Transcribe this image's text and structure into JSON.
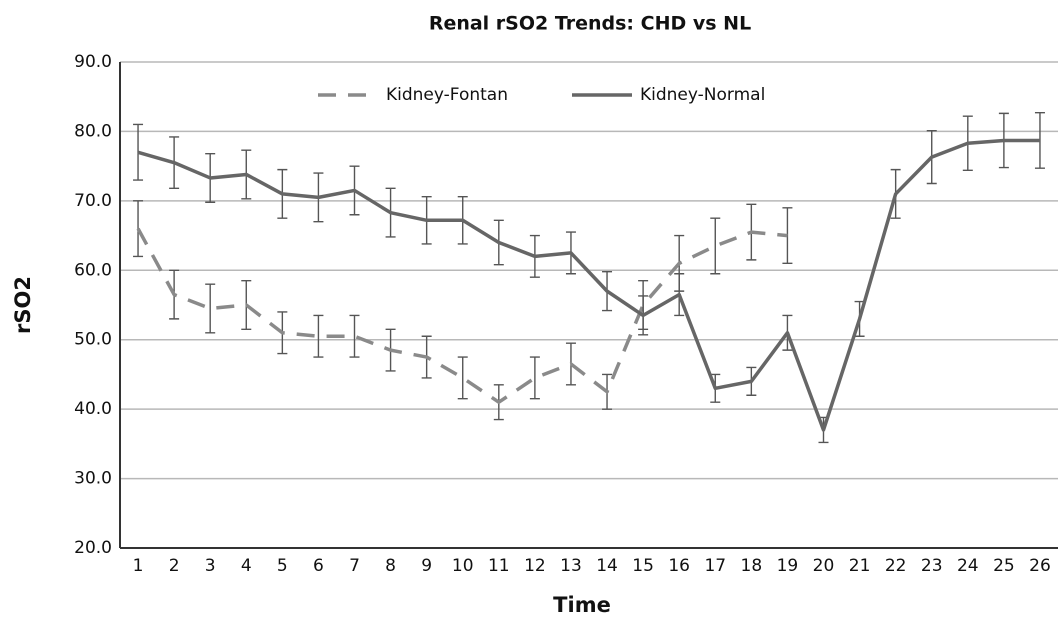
{
  "chart_data": {
    "type": "line",
    "title": "Renal rSO2 Trends: CHD vs NL",
    "xlabel": "Time",
    "ylabel": "rSO2",
    "categories": [
      "1",
      "2",
      "3",
      "4",
      "5",
      "6",
      "7",
      "8",
      "9",
      "10",
      "11",
      "12",
      "13",
      "14",
      "15",
      "16",
      "17",
      "18",
      "19",
      "20",
      "21",
      "22",
      "23",
      "24",
      "25",
      "26"
    ],
    "series": [
      {
        "name": "Kidney-Fontan",
        "color": "#8a8a8a",
        "dash": true,
        "values": [
          66,
          56.5,
          54.5,
          55,
          51,
          50.5,
          50.5,
          48.5,
          47.5,
          44.5,
          41,
          44.5,
          46.5,
          42.5,
          55,
          61,
          63.5,
          65.5,
          65,
          null,
          null,
          null,
          null,
          null,
          null,
          null
        ],
        "errors": [
          4,
          3.5,
          3.5,
          3.5,
          3,
          3,
          3,
          3,
          3,
          3,
          2.5,
          3,
          3,
          2.5,
          3.5,
          4,
          4,
          4,
          4,
          null,
          null,
          null,
          null,
          null,
          null,
          null
        ]
      },
      {
        "name": "Kidney-Normal",
        "color": "#666666",
        "dash": false,
        "values": [
          77,
          75.5,
          73.3,
          73.8,
          71,
          70.5,
          71.5,
          68.3,
          67.2,
          67.2,
          64,
          62,
          62.5,
          57,
          53.5,
          56.5,
          43,
          44,
          51,
          37,
          53,
          71,
          76.3,
          78.3,
          78.7,
          78.7
        ],
        "errors": [
          4,
          3.7,
          3.5,
          3.5,
          3.5,
          3.5,
          3.5,
          3.5,
          3.4,
          3.4,
          3.2,
          3,
          3,
          2.8,
          2.8,
          3,
          2,
          2,
          2.5,
          1.8,
          2.5,
          3.5,
          3.8,
          3.9,
          3.9,
          4
        ]
      }
    ],
    "ylim": [
      20,
      90
    ],
    "yticks": [
      {
        "value": 20,
        "label": "20.0"
      },
      {
        "value": 30,
        "label": "30.0"
      },
      {
        "value": 40,
        "label": "40.0"
      },
      {
        "value": 50,
        "label": "50.0"
      },
      {
        "value": 60,
        "label": "60.0"
      },
      {
        "value": 70,
        "label": "70.0"
      },
      {
        "value": 80,
        "label": "80.0"
      },
      {
        "value": 90,
        "label": "90.0"
      }
    ],
    "grid": true,
    "legend": "top"
  }
}
